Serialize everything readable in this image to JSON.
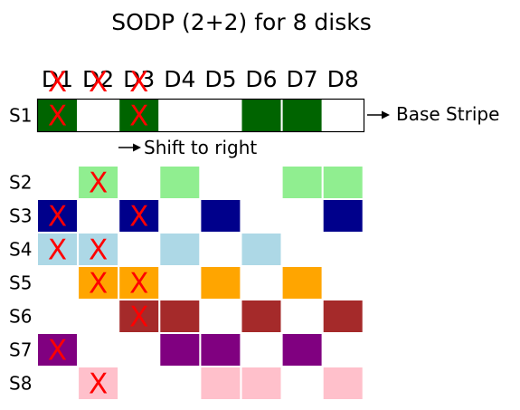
{
  "title": "SODP (2+2) for 8 disks",
  "disks": [
    "D1",
    "D2",
    "D3",
    "D4",
    "D5",
    "D6",
    "D7",
    "D8"
  ],
  "failed_disks": [
    "D1",
    "D2",
    "D3"
  ],
  "failure_mark": "X",
  "base_stripe_label": "Base Stripe",
  "shift_label": "Shift to right",
  "stripes": [
    {
      "label": "S1",
      "color": "#006400",
      "cells": [
        1,
        0,
        1,
        0,
        0,
        1,
        1,
        0
      ],
      "marks": [
        1,
        0,
        1,
        0,
        0,
        0,
        0,
        0
      ]
    },
    {
      "label": "S2",
      "color": "#90ee90",
      "cells": [
        0,
        1,
        0,
        1,
        0,
        0,
        1,
        1
      ],
      "marks": [
        0,
        1,
        0,
        0,
        0,
        0,
        0,
        0
      ]
    },
    {
      "label": "S3",
      "color": "#00008b",
      "cells": [
        1,
        0,
        1,
        0,
        1,
        0,
        0,
        1
      ],
      "marks": [
        1,
        0,
        1,
        0,
        0,
        0,
        0,
        0
      ]
    },
    {
      "label": "S4",
      "color": "#add8e6",
      "cells": [
        1,
        1,
        0,
        1,
        0,
        1,
        0,
        0
      ],
      "marks": [
        1,
        1,
        0,
        0,
        0,
        0,
        0,
        0
      ]
    },
    {
      "label": "S5",
      "color": "#ffa500",
      "cells": [
        0,
        1,
        1,
        0,
        1,
        0,
        1,
        0
      ],
      "marks": [
        0,
        1,
        1,
        0,
        0,
        0,
        0,
        0
      ]
    },
    {
      "label": "S6",
      "color": "#a52a2a",
      "cells": [
        0,
        0,
        1,
        1,
        0,
        1,
        0,
        1
      ],
      "marks": [
        0,
        0,
        1,
        0,
        0,
        0,
        0,
        0
      ]
    },
    {
      "label": "S7",
      "color": "#800080",
      "cells": [
        1,
        0,
        0,
        1,
        1,
        0,
        1,
        0
      ],
      "marks": [
        1,
        0,
        0,
        0,
        0,
        0,
        0,
        0
      ]
    },
    {
      "label": "S8",
      "color": "#ffc0cb",
      "cells": [
        0,
        1,
        0,
        0,
        1,
        1,
        0,
        1
      ],
      "marks": [
        0,
        1,
        0,
        0,
        0,
        0,
        0,
        0
      ]
    }
  ]
}
